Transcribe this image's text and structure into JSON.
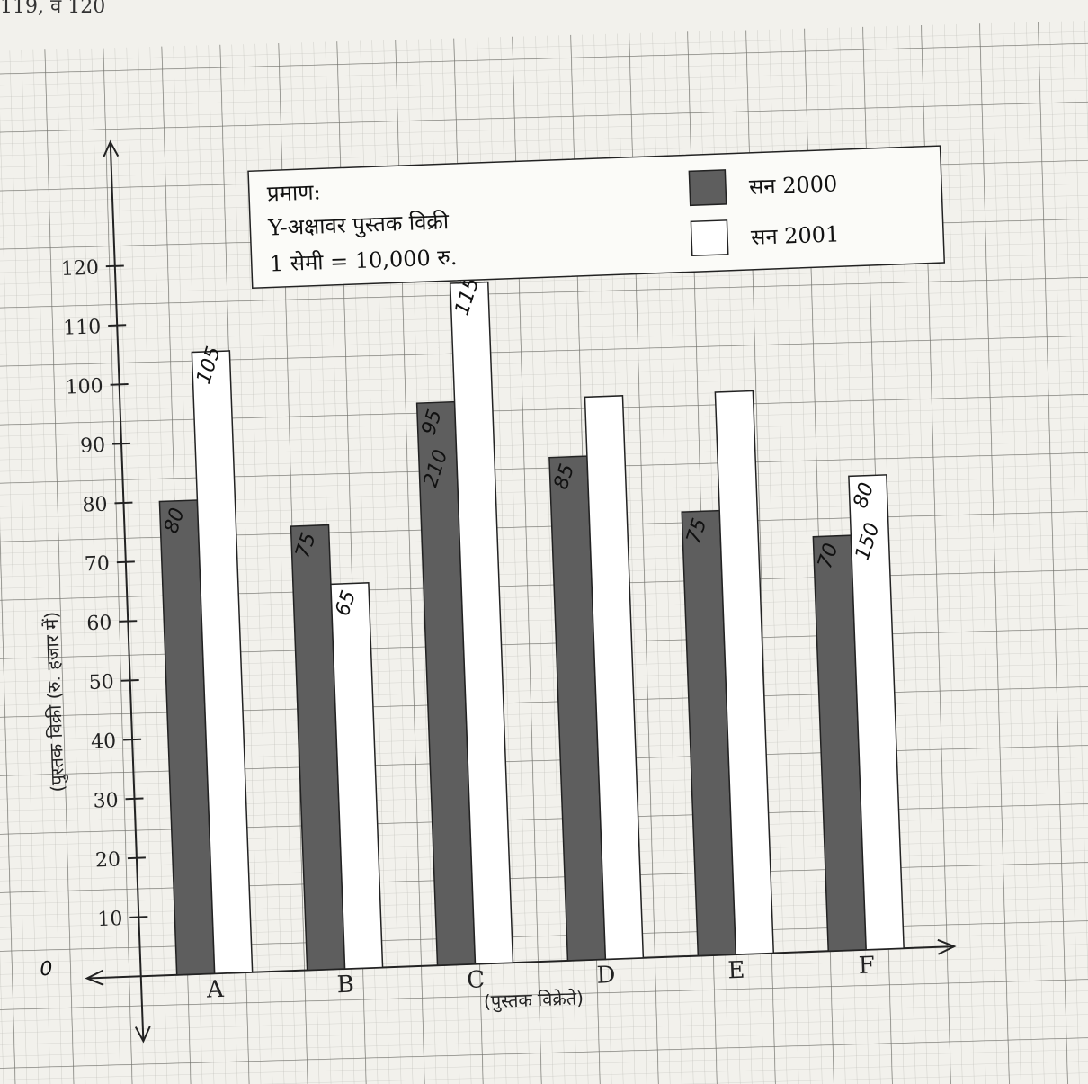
{
  "top_fragment": "119, व 120",
  "chart_data": {
    "type": "bar",
    "categories": [
      "A",
      "B",
      "C",
      "D",
      "E",
      "F"
    ],
    "series": [
      {
        "name": "सन 2000",
        "values": [
          80,
          75,
          95,
          85,
          75,
          70
        ],
        "color": "#5e5e5e"
      },
      {
        "name": "सन 2001",
        "values": [
          105,
          65,
          115,
          95,
          95,
          80
        ],
        "color": "#ffffff"
      }
    ],
    "xlabel": "(पुस्तक विक्रेते)",
    "ylabel": "(पुस्तक विक्री (रु. हजार में)",
    "yticks": [
      10,
      20,
      30,
      40,
      50,
      60,
      70,
      80,
      90,
      100,
      110,
      120
    ],
    "ylim": [
      0,
      120
    ],
    "origin_label": "0",
    "grid": true,
    "legend_position": "top-right",
    "scale_box": {
      "title": "प्रमाण:",
      "line1": "Y-अक्षावर पुस्तक विक्री",
      "line2": "1 सेमी = 10,000 रु."
    },
    "handwritten_annotations": [
      {
        "bar": "A-2000",
        "text": "80"
      },
      {
        "bar": "A-2001",
        "text": "105"
      },
      {
        "bar": "B-2000",
        "text": "75"
      },
      {
        "bar": "B-2001",
        "text": "65"
      },
      {
        "bar": "C-2000",
        "text": "95"
      },
      {
        "bar": "C-2000",
        "text": "210"
      },
      {
        "bar": "C-2001",
        "text": "115"
      },
      {
        "bar": "D-2000",
        "text": "85"
      },
      {
        "bar": "E-2000",
        "text": "75"
      },
      {
        "bar": "F-2000",
        "text": "70"
      },
      {
        "bar": "F-2001",
        "text": "80"
      },
      {
        "bar": "F-2001",
        "text": "150"
      }
    ]
  }
}
